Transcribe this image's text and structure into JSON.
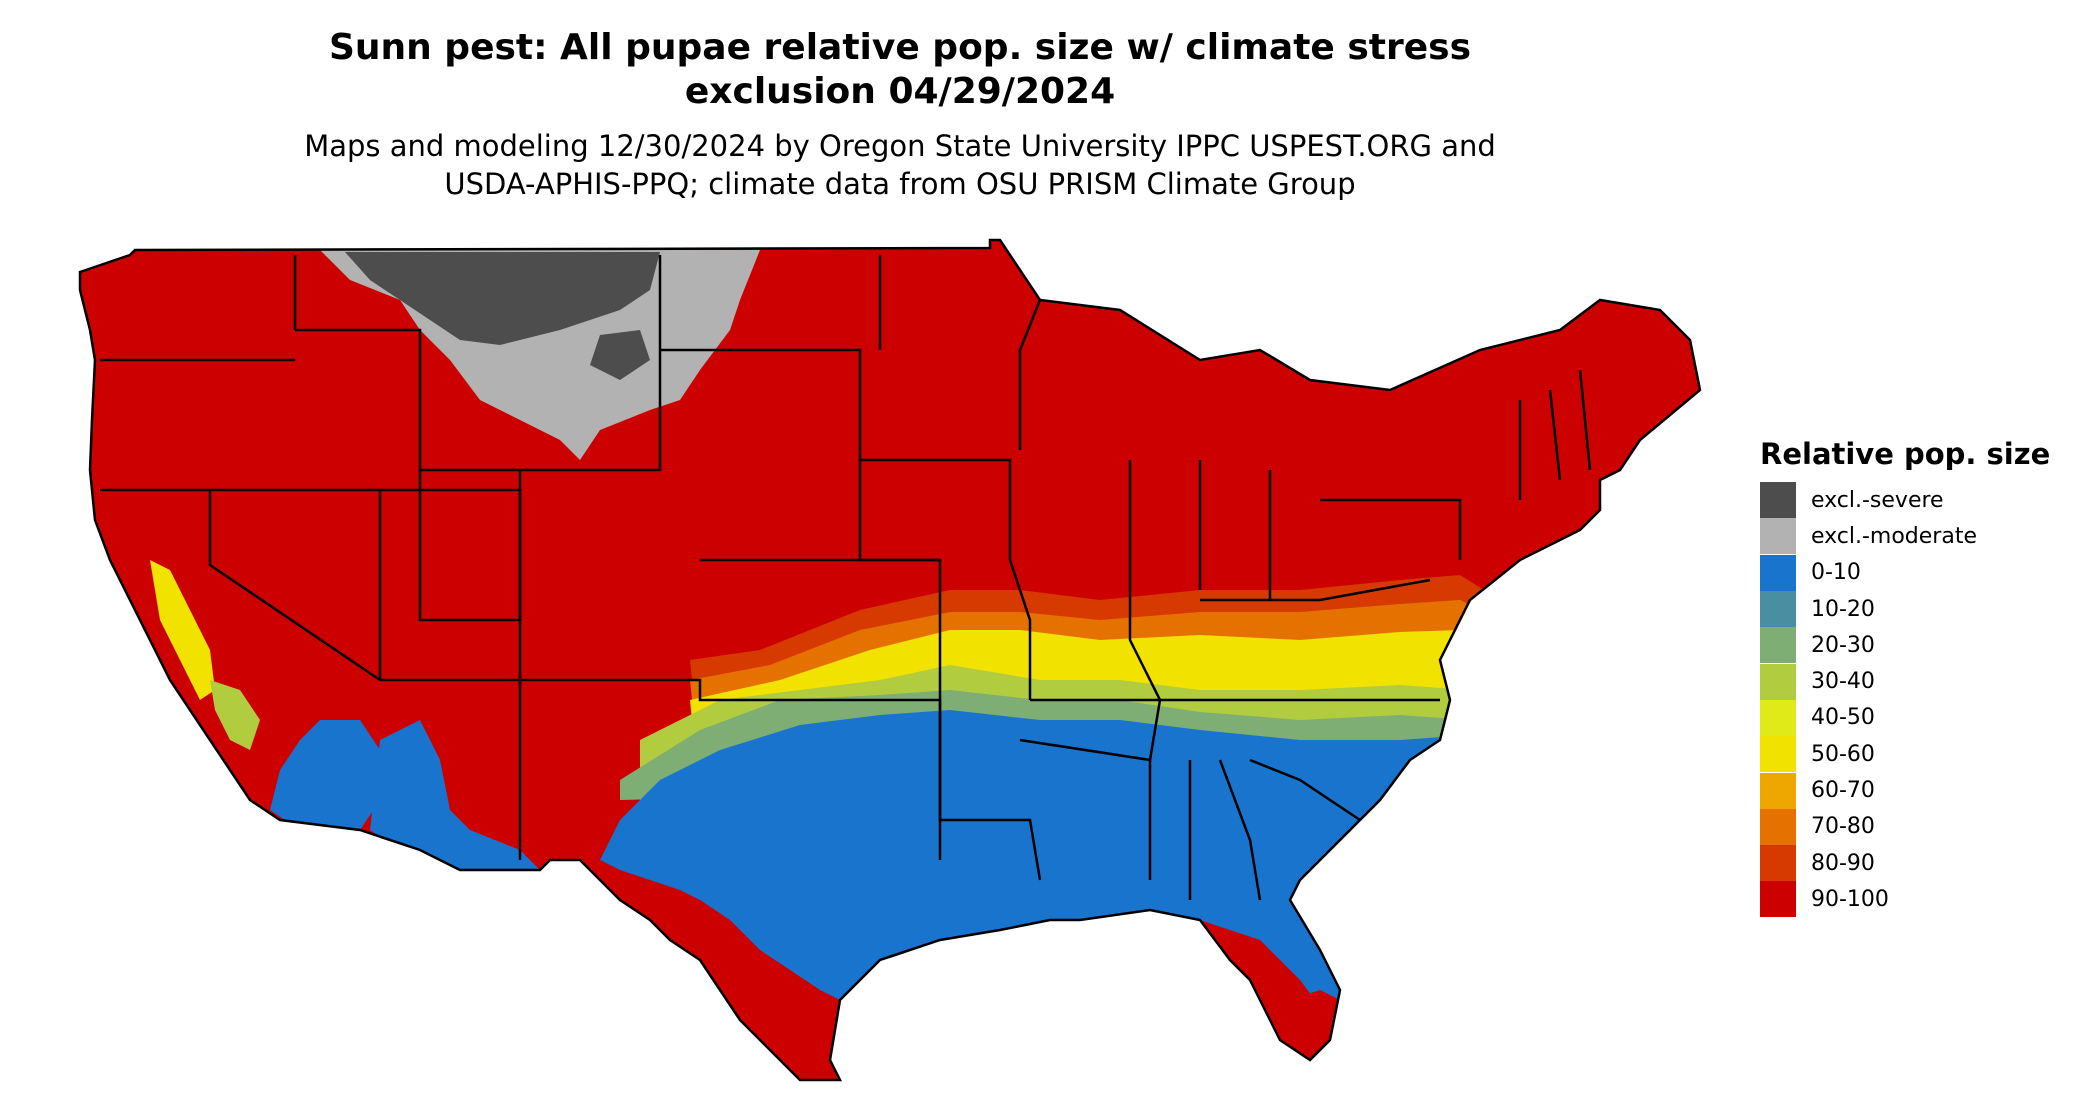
{
  "title_line1": "Sunn pest: All pupae relative pop. size w/ climate stress",
  "title_line2": "exclusion 04/29/2024",
  "subtitle_line1": "Maps and modeling 12/30/2024 by Oregon State University IPPC USPEST.ORG and",
  "subtitle_line2": "USDA-APHIS-PPQ; climate data from OSU PRISM Climate Group",
  "legend": {
    "title": "Relative pop. size",
    "items": [
      {
        "label": "excl.-severe",
        "color": "#4d4d4d"
      },
      {
        "label": "excl.-moderate",
        "color": "#b2b2b2"
      },
      {
        "label": "0-10",
        "color": "#1874cd"
      },
      {
        "label": "10-20",
        "color": "#4a8fa1"
      },
      {
        "label": "20-30",
        "color": "#7fae75"
      },
      {
        "label": "30-40",
        "color": "#b2cc3f"
      },
      {
        "label": "40-50",
        "color": "#e0ea18"
      },
      {
        "label": "50-60",
        "color": "#f2e200"
      },
      {
        "label": "60-70",
        "color": "#eea700"
      },
      {
        "label": "70-80",
        "color": "#e57200"
      },
      {
        "label": "80-90",
        "color": "#d63a00"
      },
      {
        "label": "90-100",
        "color": "#cd0000"
      }
    ]
  },
  "map": {
    "outline_color": "#000000"
  }
}
